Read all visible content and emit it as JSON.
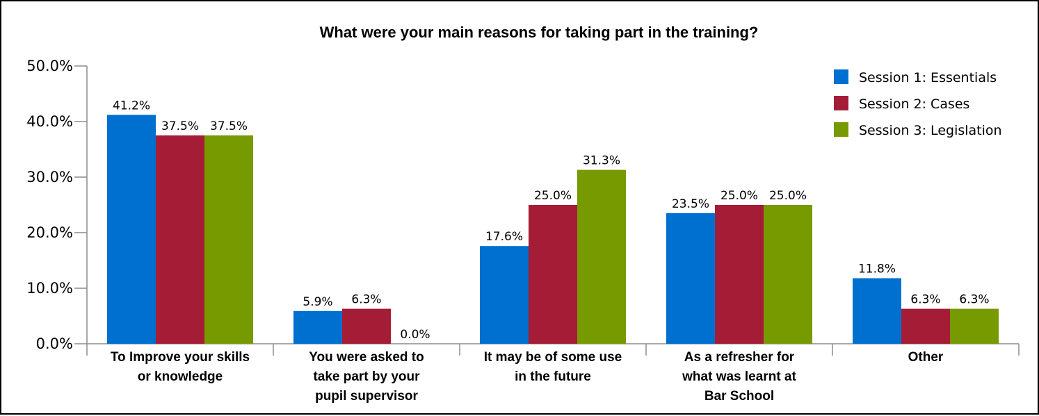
{
  "chart_data": {
    "type": "bar",
    "title": "What were your main reasons for taking part in the training?",
    "categories": [
      [
        "To Improve your skills",
        "or knowledge"
      ],
      [
        "You were asked to",
        "take part by your",
        "pupil supervisor"
      ],
      [
        "It may be of some use",
        "in the future"
      ],
      [
        "As a refresher for",
        "what was learnt at",
        "Bar School"
      ],
      [
        "Other"
      ]
    ],
    "series": [
      {
        "name": "Session 1: Essentials",
        "color": "#0070d0",
        "values": [
          41.2,
          5.9,
          17.6,
          23.5,
          11.8
        ],
        "labels": [
          "41.2%",
          "5.9%",
          "17.6%",
          "23.5%",
          "11.8%"
        ]
      },
      {
        "name": "Session 2: Cases",
        "color": "#a51c36",
        "values": [
          37.5,
          6.3,
          25.0,
          25.0,
          6.3
        ],
        "labels": [
          "37.5%",
          "6.3%",
          "25.0%",
          "25.0%",
          "6.3%"
        ]
      },
      {
        "name": "Session 3: Legislation",
        "color": "#779a00",
        "values": [
          37.5,
          0.0,
          31.3,
          25.0,
          6.3
        ],
        "labels": [
          "37.5%",
          "0.0%",
          "31.3%",
          "25.0%",
          "6.3%"
        ]
      }
    ],
    "ylim": [
      0,
      50
    ],
    "yticks": [
      "0.0%",
      "10.0%",
      "20.0%",
      "30.0%",
      "40.0%",
      "50.0%"
    ],
    "xlabel": "",
    "ylabel": "",
    "legend": "top-right",
    "grid": false
  }
}
